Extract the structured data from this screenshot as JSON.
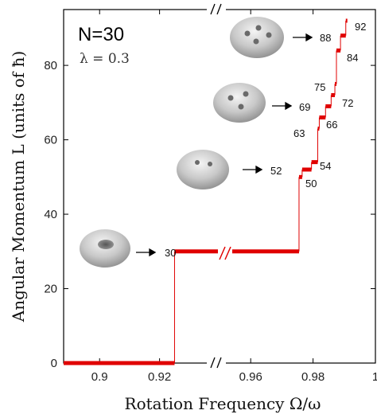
{
  "chart_data": {
    "type": "line",
    "title": "N=30",
    "subtitle": "λ = 0.3",
    "xlabel": "Rotation Frequency  Ω/ω",
    "ylabel": "Angular Momentum L  (units of ħ)",
    "x_ticks": [
      "0.9",
      "0.92",
      "0.96",
      "0.98",
      "1"
    ],
    "y_ticks": [
      "0",
      "20",
      "40",
      "60",
      "80"
    ],
    "ylim": [
      0,
      95
    ],
    "axis_break": "x",
    "series_color": "#e00000",
    "steps": [
      {
        "L": 0,
        "from": 0.888,
        "to": 0.925
      },
      {
        "L": 30,
        "from": 0.925,
        "to": 0.9755
      },
      {
        "L": 50,
        "from": 0.9755,
        "to": 0.9765
      },
      {
        "L": 52,
        "from": 0.9765,
        "to": 0.9795
      },
      {
        "L": 54,
        "from": 0.9795,
        "to": 0.9815
      },
      {
        "L": 63,
        "from": 0.9815,
        "to": 0.982
      },
      {
        "L": 66,
        "from": 0.982,
        "to": 0.984
      },
      {
        "L": 69,
        "from": 0.984,
        "to": 0.9858
      },
      {
        "L": 72,
        "from": 0.9858,
        "to": 0.987
      },
      {
        "L": 75,
        "from": 0.987,
        "to": 0.9875
      },
      {
        "L": 84,
        "from": 0.9875,
        "to": 0.9888
      },
      {
        "L": 88,
        "from": 0.9888,
        "to": 0.9905
      },
      {
        "L": 92,
        "from": 0.9905,
        "to": 0.991
      }
    ],
    "state_labels": [
      "30",
      "50",
      "52",
      "54",
      "63",
      "66",
      "69",
      "72",
      "75",
      "84",
      "88",
      "92"
    ],
    "inset_icons": [
      "torus-no-vortex",
      "torus-2-vortices",
      "torus-3-vortices",
      "torus-4-vortices"
    ]
  }
}
